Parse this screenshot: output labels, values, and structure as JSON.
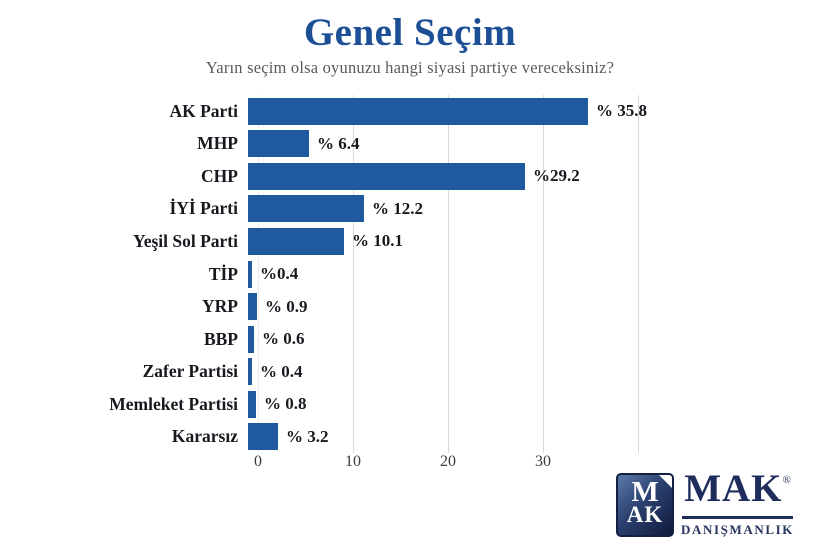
{
  "title": "Genel Seçim",
  "subtitle": "Yarın seçim olsa oyunuzu hangi siyasi partiye vereceksiniz?",
  "chart_data": {
    "type": "bar",
    "orientation": "horizontal",
    "title": "Genel Seçim",
    "categories": [
      "AK Parti",
      "MHP",
      "CHP",
      "İYİ Parti",
      "Yeşil Sol Parti",
      "TİP",
      "YRP",
      "BBP",
      "Zafer Partisi",
      "Memleket Partisi",
      "Kararsız"
    ],
    "values": [
      35.8,
      6.4,
      29.2,
      12.2,
      10.1,
      0.4,
      0.9,
      0.6,
      0.4,
      0.8,
      3.2
    ],
    "value_labels": [
      "% 35.8",
      "% 6.4",
      "%29.2",
      "% 12.2",
      "% 10.1",
      "%0.4",
      "% 0.9",
      "% 0.6",
      "% 0.4",
      "% 0.8",
      "% 3.2"
    ],
    "unit": "%",
    "xlim": [
      0,
      40
    ],
    "x_ticks": [
      0,
      10,
      20,
      30
    ],
    "gridlines_at": [
      0,
      10,
      20,
      30,
      40
    ],
    "grid": "vertical",
    "legend": "none",
    "bar_color": "#1f5a9e"
  },
  "logo": {
    "emblem_top": "M",
    "emblem_bottom": "AK",
    "name": "MAK",
    "registered": "®",
    "subtitle": "DANIŞMANLIK"
  },
  "colors": {
    "bar": "#1f5a9e",
    "title": "#1d4f97",
    "text": "#17191f",
    "subtitle_text": "#5a5a5a",
    "gridline": "#d9d9d9",
    "logo_navy": "#1e2d5c",
    "background": "#ffffff"
  }
}
